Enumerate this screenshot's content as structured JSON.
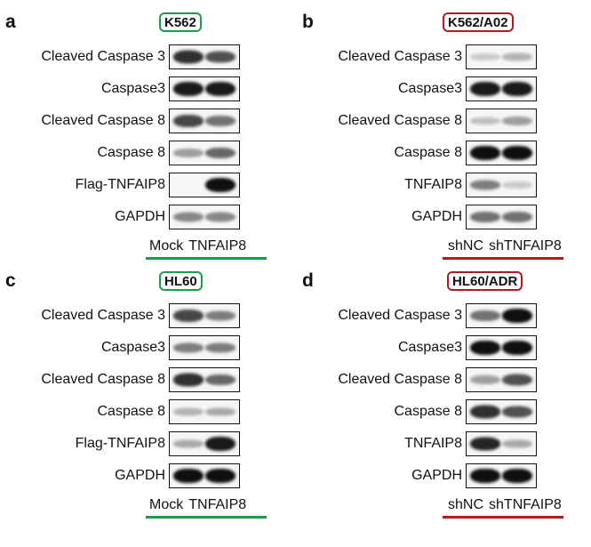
{
  "panels": [
    {
      "letter": "a",
      "cell_line": "K562",
      "tag_color": "#1a9e4b",
      "rows": [
        {
          "label": "Cleaved Caspase 3",
          "bands": [
            0.85,
            0.7
          ]
        },
        {
          "label": "Caspase3",
          "bands": [
            0.95,
            0.95
          ]
        },
        {
          "label": "Cleaved Caspase 8",
          "bands": [
            0.75,
            0.55
          ]
        },
        {
          "label": "Caspase 8",
          "bands": [
            0.35,
            0.6
          ]
        },
        {
          "label": "Flag-TNFAIP8",
          "bands": [
            0.0,
            1.0
          ]
        },
        {
          "label": "GAPDH",
          "bands": [
            0.45,
            0.45
          ]
        }
      ],
      "lanes": [
        "Mock",
        "TNFAIP8"
      ]
    },
    {
      "letter": "b",
      "cell_line": "K562/A02",
      "tag_color": "#b01c1c",
      "rows": [
        {
          "label": "Cleaved Caspase 3",
          "bands": [
            0.15,
            0.25
          ]
        },
        {
          "label": "Caspase3",
          "bands": [
            0.95,
            0.95
          ]
        },
        {
          "label": "Cleaved Caspase 8",
          "bands": [
            0.2,
            0.35
          ]
        },
        {
          "label": "Caspase 8",
          "bands": [
            1.0,
            1.0
          ]
        },
        {
          "label": "TNFAIP8",
          "bands": [
            0.5,
            0.15
          ]
        },
        {
          "label": "GAPDH",
          "bands": [
            0.55,
            0.55
          ]
        }
      ],
      "lanes": [
        "shNC",
        "shTNFAIP8"
      ]
    },
    {
      "letter": "c",
      "cell_line": "HL60",
      "tag_color": "#1a9e4b",
      "rows": [
        {
          "label": "Cleaved Caspase 3",
          "bands": [
            0.75,
            0.5
          ]
        },
        {
          "label": "Caspase3",
          "bands": [
            0.5,
            0.5
          ]
        },
        {
          "label": "Cleaved Caspase 8",
          "bands": [
            0.85,
            0.6
          ]
        },
        {
          "label": "Caspase 8",
          "bands": [
            0.25,
            0.3
          ]
        },
        {
          "label": "Flag-TNFAIP8",
          "bands": [
            0.3,
            0.95
          ]
        },
        {
          "label": "GAPDH",
          "bands": [
            1.0,
            1.0
          ]
        }
      ],
      "lanes": [
        "Mock",
        "TNFAIP8"
      ]
    },
    {
      "letter": "d",
      "cell_line": "HL60/ADR",
      "tag_color": "#b01c1c",
      "rows": [
        {
          "label": "Cleaved Caspase 3",
          "bands": [
            0.55,
            1.0
          ]
        },
        {
          "label": "Caspase3",
          "bands": [
            1.0,
            1.0
          ]
        },
        {
          "label": "Cleaved Caspase 8",
          "bands": [
            0.35,
            0.7
          ]
        },
        {
          "label": "Caspase 8",
          "bands": [
            0.85,
            0.7
          ]
        },
        {
          "label": "TNFAIP8",
          "bands": [
            0.9,
            0.3
          ]
        },
        {
          "label": "GAPDH",
          "bands": [
            1.0,
            1.0
          ]
        }
      ],
      "lanes": [
        "shNC",
        "shTNFAIP8"
      ]
    }
  ]
}
